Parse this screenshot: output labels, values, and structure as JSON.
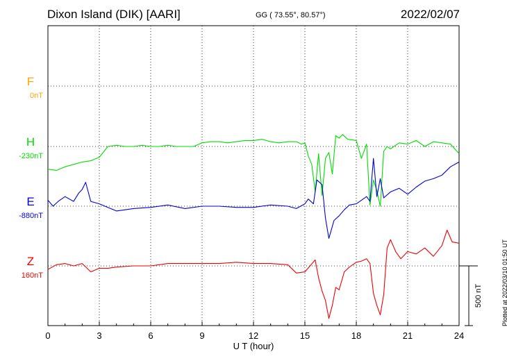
{
  "header": {
    "title": "Dixon Island (DIK)  [AARI]",
    "coords": "GG ( 73.55°,  80.57°)",
    "date": "2022/02/07"
  },
  "footer": {
    "plotted": "Plotted at 2022/03/10 01:50 UT"
  },
  "chart_data": {
    "type": "line",
    "xlabel": "U T (hour)",
    "xlim": [
      0,
      24
    ],
    "xticks": [
      0,
      3,
      6,
      9,
      12,
      15,
      18,
      21,
      24
    ],
    "scale_bar_label": "500 nT",
    "scale_bar_nT": 500,
    "grid": true,
    "series": [
      {
        "name": "F",
        "baseline_label": "0nT",
        "color": "#ffa500",
        "x": [],
        "values": []
      },
      {
        "name": "H",
        "baseline_label": "-230nT",
        "color": "#00dd00",
        "x": [
          0,
          0.5,
          1,
          1.5,
          2,
          2.5,
          3,
          3.5,
          4,
          4.5,
          5,
          5.5,
          6,
          6.5,
          7,
          7.5,
          8,
          8.5,
          9,
          9.5,
          10,
          10.5,
          11,
          11.5,
          12,
          12.5,
          13,
          13.5,
          14,
          14.5,
          14.8,
          15,
          15.2,
          15.4,
          15.6,
          15.8,
          16,
          16.2,
          16.4,
          16.6,
          16.8,
          17,
          17.2,
          17.5,
          18,
          18.3,
          18.6,
          18.8,
          19,
          19.2,
          19.4,
          19.6,
          19.8,
          20,
          20.5,
          21,
          21.5,
          22,
          22.5,
          23,
          23.5,
          24
        ],
        "values": [
          -190,
          -200,
          -170,
          -150,
          -130,
          -120,
          -90,
          0,
          10,
          0,
          0,
          10,
          0,
          0,
          10,
          0,
          0,
          0,
          30,
          40,
          40,
          30,
          40,
          50,
          50,
          60,
          40,
          30,
          40,
          40,
          20,
          30,
          -80,
          -150,
          -380,
          -60,
          -410,
          -100,
          -50,
          -230,
          90,
          70,
          100,
          60,
          50,
          -100,
          20,
          -490,
          -280,
          -370,
          -500,
          -40,
          0,
          -20,
          30,
          20,
          50,
          0,
          40,
          30,
          20,
          -60
        ]
      },
      {
        "name": "E",
        "baseline_label": "-880nT",
        "color": "#0000dd",
        "x": [
          0,
          0.3,
          0.6,
          1,
          1.5,
          1.8,
          2,
          2.2,
          2.5,
          3,
          3.5,
          4,
          5,
          6,
          7,
          8,
          9,
          10,
          11,
          12,
          13,
          14,
          14.5,
          15,
          15.2,
          15.5,
          15.7,
          16,
          16.2,
          16.4,
          16.5,
          16.7,
          17,
          17.3,
          17.6,
          18,
          18.3,
          18.6,
          18.8,
          19,
          19.2,
          19.4,
          19.6,
          20,
          20.5,
          21,
          21.5,
          22,
          22.5,
          23,
          23.5,
          24
        ],
        "values": [
          50,
          0,
          40,
          80,
          40,
          110,
          140,
          200,
          40,
          20,
          -10,
          -40,
          -20,
          -10,
          10,
          -20,
          0,
          0,
          -10,
          -10,
          10,
          0,
          -20,
          20,
          60,
          20,
          220,
          180,
          -100,
          -270,
          -220,
          -120,
          -80,
          -30,
          10,
          20,
          50,
          80,
          40,
          400,
          80,
          230,
          70,
          120,
          150,
          100,
          160,
          210,
          230,
          260,
          330,
          370
        ]
      },
      {
        "name": "Z",
        "baseline_label": "160nT",
        "color": "#ee0000",
        "x": [
          0,
          0.5,
          1,
          1.5,
          2,
          2.5,
          3,
          3.5,
          4,
          5,
          6,
          7,
          8,
          9,
          10,
          11,
          12,
          13,
          14,
          14.5,
          15,
          15.3,
          15.6,
          15.8,
          16,
          16.2,
          16.4,
          16.6,
          16.8,
          17,
          17.3,
          17.6,
          18,
          18.3,
          18.6,
          18.8,
          19,
          19.2,
          19.4,
          19.6,
          19.8,
          20,
          20.3,
          20.6,
          21,
          21.5,
          22,
          22.5,
          23,
          23.3,
          23.6,
          24
        ],
        "values": [
          -30,
          10,
          20,
          0,
          20,
          -50,
          -20,
          -20,
          -10,
          0,
          0,
          20,
          20,
          20,
          20,
          30,
          20,
          20,
          10,
          -60,
          -50,
          0,
          50,
          -100,
          -210,
          -290,
          -440,
          -330,
          -180,
          -200,
          -50,
          -10,
          30,
          40,
          60,
          20,
          -230,
          -330,
          -410,
          -240,
          150,
          220,
          120,
          60,
          120,
          100,
          150,
          80,
          170,
          300,
          200,
          190
        ]
      }
    ]
  }
}
